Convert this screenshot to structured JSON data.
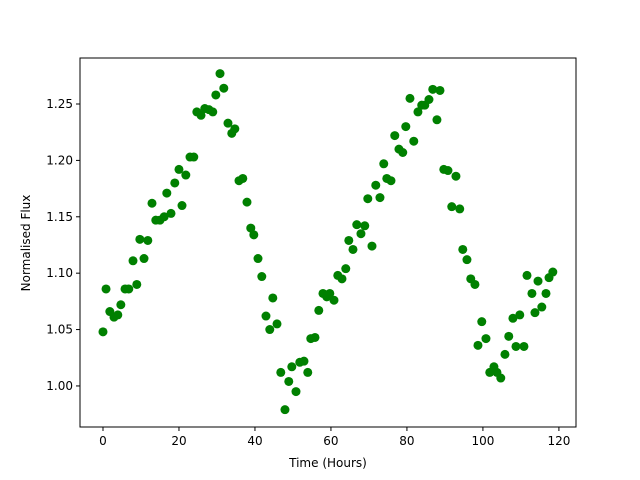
{
  "chart_data": {
    "type": "scatter",
    "x_label": "Time (Hours)",
    "y_label": "Normalised Flux",
    "color": "#008000",
    "x": [
      0,
      0.8,
      1.8,
      2.9,
      3.9,
      4.7,
      5.8,
      6.8,
      7.9,
      8.9,
      9.7,
      10.8,
      11.8,
      12.9,
      13.9,
      15,
      16.1,
      16.8,
      17.9,
      18.9,
      20,
      20.8,
      21.8,
      22.9,
      23.9,
      24.7,
      25.8,
      26.8,
      27.9,
      28.9,
      29.7,
      30.8,
      31.8,
      32.9,
      33.9,
      34.7,
      35.8,
      36.8,
      37.9,
      38.9,
      39.7,
      40.8,
      41.8,
      42.9,
      43.9,
      44.7,
      45.8,
      46.8,
      47.9,
      48.9,
      49.7,
      50.8,
      51.8,
      52.9,
      53.9,
      54.7,
      55.8,
      56.8,
      57.9,
      58.9,
      59.7,
      60.8,
      61.8,
      62.9,
      63.9,
      64.7,
      65.8,
      66.8,
      67.9,
      68.9,
      69.7,
      70.8,
      71.8,
      72.9,
      73.9,
      74.7,
      75.8,
      76.8,
      77.9,
      78.9,
      79.7,
      80.8,
      81.8,
      82.9,
      83.9,
      84.7,
      85.8,
      86.8,
      87.9,
      88.7,
      89.7,
      90.8,
      91.8,
      92.9,
      93.9,
      94.7,
      95.8,
      96.8,
      97.9,
      98.7,
      99.7,
      100.8,
      101.8,
      102.9,
      103.7,
      104.7,
      105.8,
      106.8,
      107.9,
      108.7,
      109.7,
      110.8,
      111.6,
      112.9,
      113.7,
      114.5,
      115.5,
      116.6,
      117.4,
      118.4
    ],
    "values": [
      1.048,
      1.086,
      1.066,
      1.061,
      1.063,
      1.072,
      1.086,
      1.086,
      1.111,
      1.09,
      1.13,
      1.113,
      1.129,
      1.162,
      1.147,
      1.147,
      1.15,
      1.171,
      1.153,
      1.18,
      1.192,
      1.16,
      1.187,
      1.203,
      1.203,
      1.243,
      1.24,
      1.246,
      1.245,
      1.243,
      1.258,
      1.277,
      1.264,
      1.233,
      1.224,
      1.228,
      1.182,
      1.184,
      1.163,
      1.14,
      1.134,
      1.113,
      1.097,
      1.062,
      1.05,
      1.078,
      1.055,
      1.012,
      0.979,
      1.004,
      1.017,
      0.995,
      1.021,
      1.022,
      1.012,
      1.042,
      1.043,
      1.067,
      1.082,
      1.079,
      1.082,
      1.076,
      1.098,
      1.095,
      1.104,
      1.129,
      1.121,
      1.143,
      1.135,
      1.142,
      1.166,
      1.124,
      1.178,
      1.167,
      1.197,
      1.184,
      1.182,
      1.222,
      1.21,
      1.207,
      1.23,
      1.255,
      1.217,
      1.243,
      1.249,
      1.249,
      1.254,
      1.263,
      1.236,
      1.262,
      1.192,
      1.191,
      1.159,
      1.186,
      1.157,
      1.121,
      1.112,
      1.095,
      1.09,
      1.036,
      1.057,
      1.042,
      1.012,
      1.017,
      1.012,
      1.007,
      1.028,
      1.044,
      1.06,
      1.035,
      1.063,
      1.035,
      1.098,
      1.082,
      1.065,
      1.093,
      1.07,
      1.082,
      1.096,
      1.101
    ],
    "xlim": [
      -6.05,
      124.5
    ],
    "ylim": [
      0.9636,
      1.2908
    ],
    "xticks": [
      0,
      20,
      40,
      60,
      80,
      100,
      120
    ],
    "yticks": [
      {
        "value": 1.0,
        "label": "1.00"
      },
      {
        "value": 1.05,
        "label": "1.05"
      },
      {
        "value": 1.1,
        "label": "1.10"
      },
      {
        "value": 1.15,
        "label": "1.15"
      },
      {
        "value": 1.2,
        "label": "1.20"
      },
      {
        "value": 1.25,
        "label": "1.25"
      }
    ]
  }
}
